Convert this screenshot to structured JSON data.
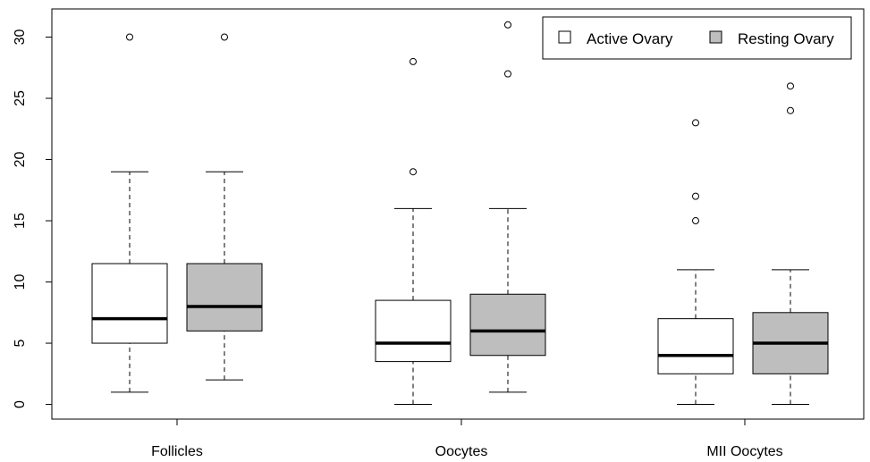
{
  "chart_data": {
    "type": "boxplot",
    "title": "",
    "xlabel": "",
    "ylabel": "",
    "ylim": [
      -1.2,
      32.3
    ],
    "yticks": [
      0,
      5,
      10,
      15,
      20,
      25,
      30
    ],
    "ytick_labels": [
      "0",
      "5",
      "10",
      "15",
      "20",
      "25",
      "30"
    ],
    "categories": [
      "Follicles",
      "Oocytes",
      "MII Oocytes"
    ],
    "series": [
      {
        "name": "Active Ovary",
        "color": "#ffffff",
        "boxes": [
          {
            "whisker_low": 1,
            "q1": 5,
            "median": 7,
            "q3": 11.5,
            "whisker_high": 19,
            "outliers": [
              30
            ]
          },
          {
            "whisker_low": 0,
            "q1": 3.5,
            "median": 5,
            "q3": 8.5,
            "whisker_high": 16,
            "outliers": [
              19,
              28
            ]
          },
          {
            "whisker_low": 0,
            "q1": 2.5,
            "median": 4,
            "q3": 7,
            "whisker_high": 11,
            "outliers": [
              15,
              17,
              23
            ]
          }
        ]
      },
      {
        "name": "Resting Ovary",
        "color": "#bebebe",
        "boxes": [
          {
            "whisker_low": 2,
            "q1": 6,
            "median": 8,
            "q3": 11.5,
            "whisker_high": 19,
            "outliers": [
              30
            ]
          },
          {
            "whisker_low": 1,
            "q1": 4,
            "median": 6,
            "q3": 9,
            "whisker_high": 16,
            "outliers": [
              27,
              31
            ]
          },
          {
            "whisker_low": 0,
            "q1": 2.5,
            "median": 5,
            "q3": 7.5,
            "whisker_high": 11,
            "outliers": [
              24,
              26
            ]
          }
        ]
      }
    ],
    "legend": {
      "position": "top-right",
      "entries": [
        "Active Ovary",
        "Resting Ovary"
      ]
    },
    "grid": false
  }
}
